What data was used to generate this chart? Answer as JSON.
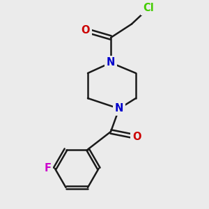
{
  "background_color": "#ebebeb",
  "atom_colors": {
    "C": "#1a1a1a",
    "N": "#0000cc",
    "O": "#cc0000",
    "F": "#cc00cc",
    "Cl": "#44cc00"
  },
  "bond_color": "#1a1a1a",
  "bond_width": 1.8,
  "font_size_atoms": 10.5
}
